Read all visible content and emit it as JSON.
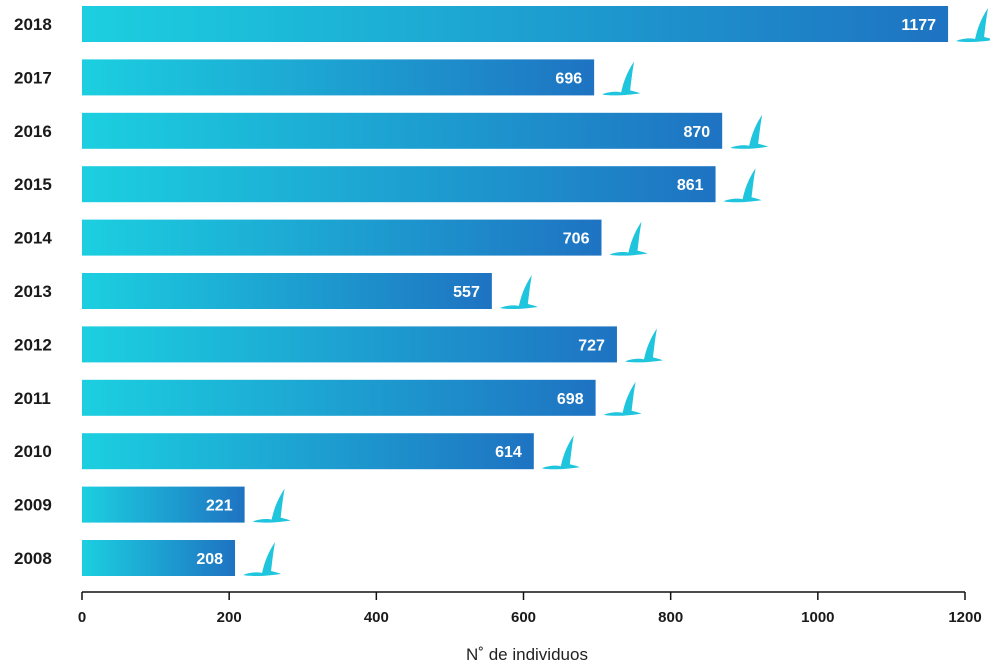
{
  "chart_data": {
    "type": "bar",
    "orientation": "horizontal",
    "categories": [
      "2018",
      "2017",
      "2016",
      "2015",
      "2014",
      "2013",
      "2012",
      "2011",
      "2010",
      "2009",
      "2008"
    ],
    "values": [
      1177,
      696,
      870,
      861,
      706,
      557,
      727,
      698,
      614,
      221,
      208
    ],
    "value_labels": [
      "1177",
      "696",
      "870",
      "861",
      "706",
      "557",
      "727",
      "698",
      "614",
      "221",
      "208"
    ],
    "xlabel": "N˚ de individuos",
    "ylabel": "",
    "title": "",
    "xlim": [
      0,
      1200
    ],
    "xticks": [
      "0",
      "200",
      "400",
      "600",
      "800",
      "1000",
      "1200"
    ],
    "grid": false,
    "legend": "none",
    "bar_end_icon": "bird-icon",
    "colors": {
      "bar_gradient_start": "#1ccfe0",
      "bar_gradient_end": "#1e73c2",
      "bird": "#1fc4dd",
      "axis": "#111111",
      "value_text": "#ffffff",
      "label_text": "#1a1a1a"
    }
  }
}
